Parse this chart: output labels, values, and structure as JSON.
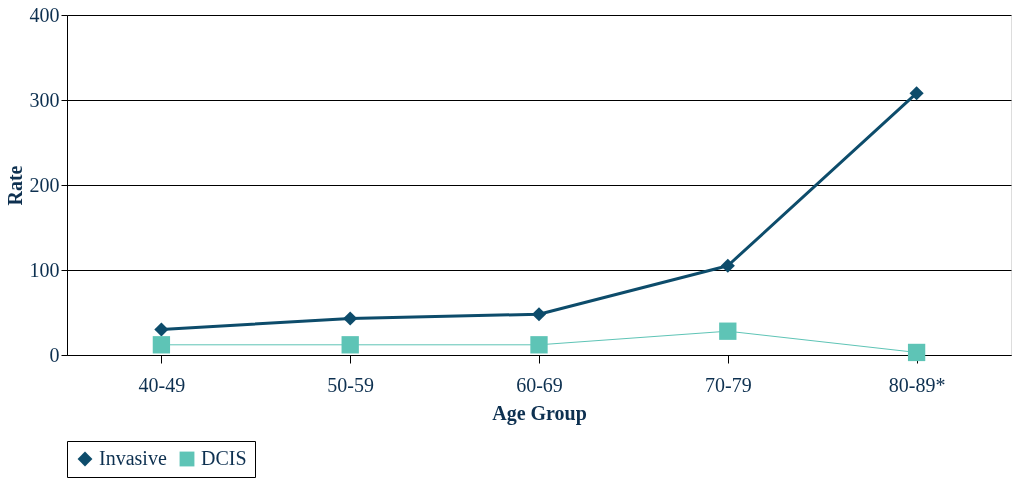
{
  "chart_data": {
    "type": "line",
    "xlabel": "Age Group",
    "ylabel": "Rate",
    "categories": [
      "40-49",
      "50-59",
      "60-69",
      "70-79",
      "80-89*"
    ],
    "series": [
      {
        "name": "Invasive",
        "color": "#0d4c6b",
        "values": [
          30,
          43,
          48,
          105,
          308
        ],
        "marker": "diamond"
      },
      {
        "name": "DCIS",
        "color": "#5ec4b6",
        "values": [
          12,
          12,
          12,
          28,
          3
        ],
        "marker": "square"
      }
    ],
    "ylim": [
      0,
      400
    ],
    "yticks": [
      0,
      100,
      200,
      300,
      400
    ],
    "grid": "y",
    "legend": "bottom"
  }
}
